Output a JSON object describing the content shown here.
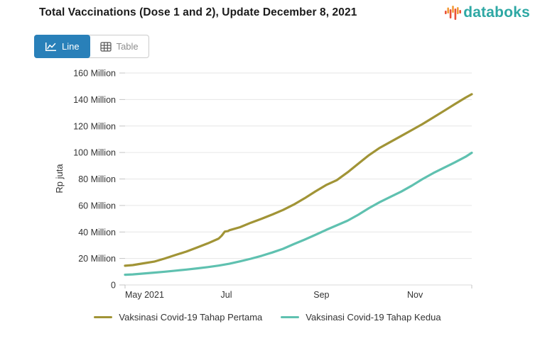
{
  "header": {
    "title": "Total Vaccinations (Dose 1 and 2), Update December 8, 2021"
  },
  "logo": {
    "text": "databoks",
    "text_color": "#2EA8A4",
    "bars": [
      {
        "y": 10,
        "h": 5,
        "c": "#E8503A"
      },
      {
        "y": 5.5,
        "h": 8.5,
        "c": "#F39B38"
      },
      {
        "y": 8,
        "h": 13,
        "c": "#E8503A"
      },
      {
        "y": 3,
        "h": 10,
        "c": "#F39B38"
      },
      {
        "y": 7,
        "h": 16,
        "c": "#E8503A"
      },
      {
        "y": 5,
        "h": 10,
        "c": "#F39B38"
      },
      {
        "y": 9,
        "h": 5,
        "c": "#E8503A"
      }
    ]
  },
  "toolbar": {
    "line_label": "Line",
    "table_label": "Table",
    "active_color": "#2980b9"
  },
  "chart_data": {
    "type": "line",
    "title": "Total Vaccinations (Dose 1 and 2), Update December 8, 2021",
    "xlabel": "",
    "ylabel": "Rp juta",
    "ylim": [
      0,
      160
    ],
    "grid": true,
    "legend_position": "bottom",
    "x_domain_days": 226,
    "y_ticks": [
      {
        "value": 0,
        "label": "0"
      },
      {
        "value": 20,
        "label": "20 Million"
      },
      {
        "value": 40,
        "label": "40 Million"
      },
      {
        "value": 60,
        "label": "60 Million"
      },
      {
        "value": 80,
        "label": "80 Million"
      },
      {
        "value": 100,
        "label": "100 Million"
      },
      {
        "value": 120,
        "label": "120 Million"
      },
      {
        "value": 140,
        "label": "140 Million"
      },
      {
        "value": 160,
        "label": "160 Million"
      }
    ],
    "x_ticks": [
      {
        "day": 5,
        "label": "May 2021",
        "align": "start"
      },
      {
        "day": 66,
        "label": "Jul"
      },
      {
        "day": 128,
        "label": "Sep"
      },
      {
        "day": 189,
        "label": "Nov"
      }
    ],
    "series": [
      {
        "name": "Vaksinasi Covid-19 Tahap Pertama",
        "color": "#a19436",
        "points": [
          [
            0,
            14.5
          ],
          [
            5,
            15
          ],
          [
            12,
            16.3
          ],
          [
            19,
            17.6
          ],
          [
            26,
            20
          ],
          [
            33,
            22.7
          ],
          [
            40,
            25.2
          ],
          [
            47,
            28.3
          ],
          [
            54,
            31.4
          ],
          [
            61,
            35
          ],
          [
            63,
            37.2
          ],
          [
            65,
            40.3
          ],
          [
            67,
            40.6
          ],
          [
            68,
            41.3
          ],
          [
            75,
            43.6
          ],
          [
            82,
            47
          ],
          [
            89,
            50
          ],
          [
            96,
            53.2
          ],
          [
            103,
            56.6
          ],
          [
            110,
            60.7
          ],
          [
            117,
            65.4
          ],
          [
            124,
            70.6
          ],
          [
            131,
            75.4
          ],
          [
            138,
            79.1
          ],
          [
            145,
            85
          ],
          [
            152,
            91.5
          ],
          [
            159,
            98
          ],
          [
            166,
            103.5
          ],
          [
            173,
            108
          ],
          [
            180,
            112.5
          ],
          [
            187,
            117
          ],
          [
            194,
            121.5
          ],
          [
            201,
            126.5
          ],
          [
            208,
            131.5
          ],
          [
            215,
            136.5
          ],
          [
            222,
            141.5
          ],
          [
            226,
            144
          ]
        ]
      },
      {
        "name": "Vaksinasi Covid-19 Tahap Kedua",
        "color": "#5fc1b0",
        "points": [
          [
            0,
            7.7
          ],
          [
            5,
            8
          ],
          [
            12,
            8.6
          ],
          [
            19,
            9.3
          ],
          [
            26,
            10
          ],
          [
            33,
            10.8
          ],
          [
            40,
            11.6
          ],
          [
            47,
            12.5
          ],
          [
            54,
            13.5
          ],
          [
            61,
            14.6
          ],
          [
            68,
            16
          ],
          [
            75,
            17.8
          ],
          [
            82,
            19.8
          ],
          [
            89,
            22
          ],
          [
            96,
            24.5
          ],
          [
            103,
            27.3
          ],
          [
            110,
            30.8
          ],
          [
            117,
            34.2
          ],
          [
            124,
            37.8
          ],
          [
            131,
            41.5
          ],
          [
            138,
            45
          ],
          [
            145,
            48.5
          ],
          [
            152,
            53
          ],
          [
            159,
            58
          ],
          [
            166,
            62.5
          ],
          [
            173,
            66.5
          ],
          [
            180,
            70.5
          ],
          [
            187,
            75
          ],
          [
            194,
            80
          ],
          [
            201,
            84.5
          ],
          [
            208,
            88.5
          ],
          [
            215,
            92.5
          ],
          [
            222,
            96.8
          ],
          [
            226,
            99.8
          ]
        ]
      }
    ]
  }
}
